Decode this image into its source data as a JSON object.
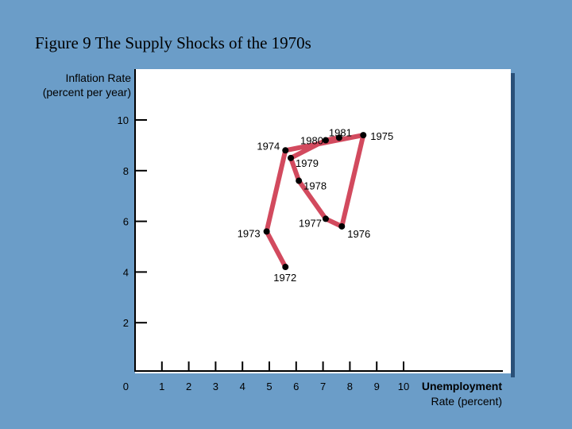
{
  "title": "Figure 9 The Supply Shocks of the 1970s",
  "chart_data": {
    "type": "line",
    "title": "Figure 9 The Supply Shocks of the 1970s",
    "ylabel_lines": [
      "Inflation Rate",
      "(percent per year)"
    ],
    "xlabel_lines": [
      "Unemployment",
      "Rate (percent)"
    ],
    "xlim": [
      0,
      10
    ],
    "ylim": [
      0,
      10
    ],
    "x_ticks": [
      1,
      2,
      3,
      4,
      5,
      6,
      7,
      8,
      9,
      10
    ],
    "y_ticks": [
      2,
      4,
      6,
      8,
      10
    ],
    "origin_label": "0",
    "grid": false,
    "series": [
      {
        "points": [
          {
            "label": "1972",
            "x": 5.6,
            "y": 4.2
          },
          {
            "label": "1973",
            "x": 4.9,
            "y": 5.6
          },
          {
            "label": "1974",
            "x": 5.6,
            "y": 8.8
          },
          {
            "label": "1975",
            "x": 8.5,
            "y": 9.4
          },
          {
            "label": "1976",
            "x": 7.7,
            "y": 5.8
          },
          {
            "label": "1977",
            "x": 7.1,
            "y": 6.1
          },
          {
            "label": "1978",
            "x": 6.1,
            "y": 7.6
          },
          {
            "label": "1979",
            "x": 5.8,
            "y": 8.5
          },
          {
            "label": "1980",
            "x": 7.1,
            "y": 9.2
          },
          {
            "label": "1981",
            "x": 7.6,
            "y": 9.3
          }
        ]
      }
    ]
  },
  "colors": {
    "background": "#6b9dc8",
    "plot_background": "#ffffff",
    "line": "#d24a5e",
    "point": "#000000"
  }
}
